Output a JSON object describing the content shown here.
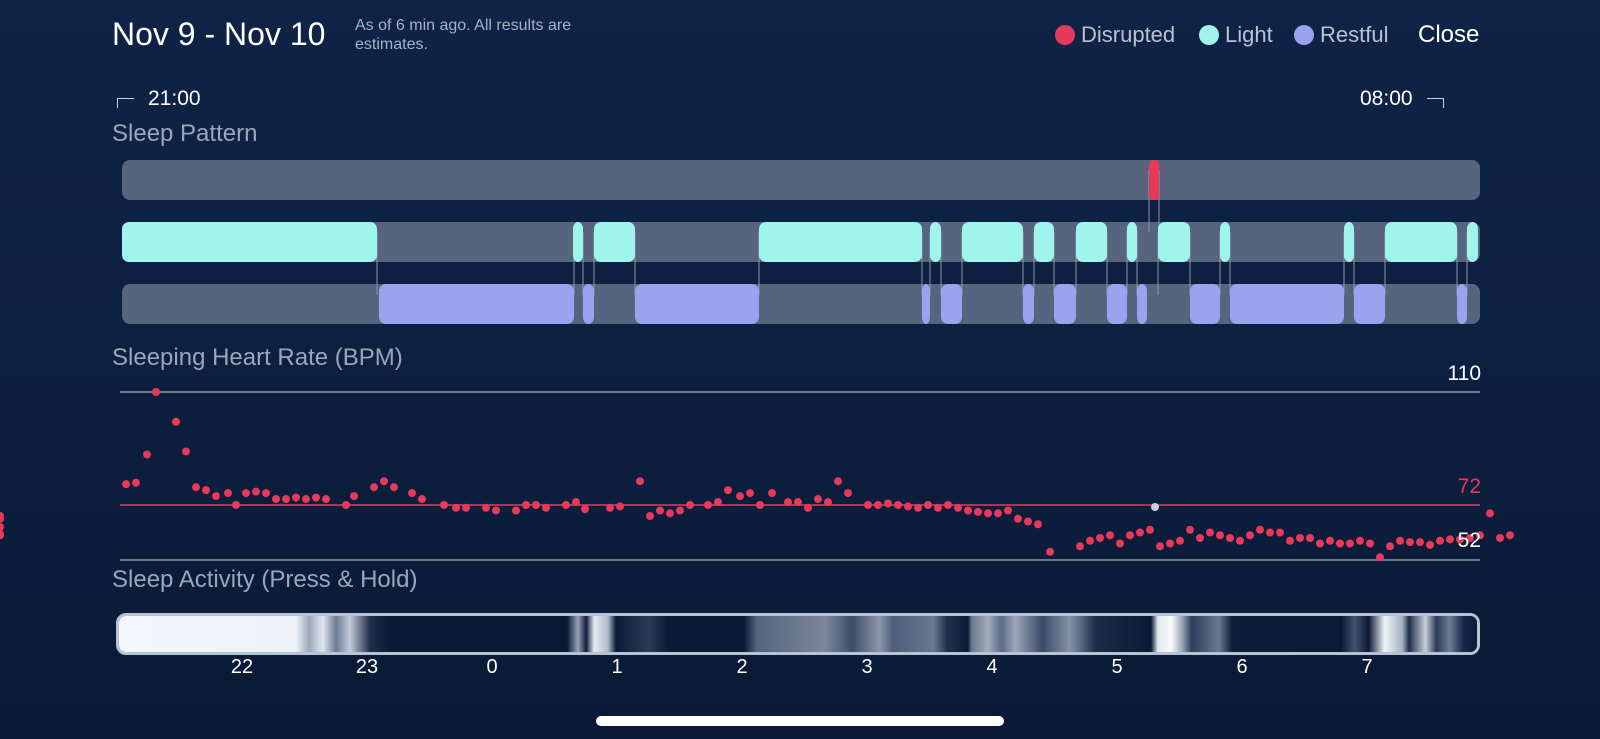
{
  "header": {
    "date_range": "Nov 9 - Nov 10",
    "note": "As of 6 min ago. All results are estimates.",
    "legend": [
      {
        "label": "Disrupted",
        "color": "#e8395a"
      },
      {
        "label": "Light",
        "color": "#9ff5ec"
      },
      {
        "label": "Restful",
        "color": "#9aa3f0"
      }
    ],
    "close_label": "Close"
  },
  "timeline": {
    "start": "21:00",
    "end": "08:00"
  },
  "sleep_pattern": {
    "title": "Sleep Pattern",
    "track_color": "#56657d",
    "disrupted_color": "#e8395a",
    "light_color": "#9ff5ec",
    "restful_color": "#9aa3f0"
  },
  "heart_rate": {
    "title": "Sleeping Heart Rate (BPM)",
    "max_label": "110",
    "avg_label": "72",
    "min_label": "52",
    "avg_color": "#e8395a",
    "point_color": "#e8395a"
  },
  "sleep_activity": {
    "title": "Sleep Activity (Press & Hold)"
  },
  "hour_ticks": [
    "22",
    "23",
    "0",
    "1",
    "2",
    "3",
    "4",
    "5",
    "6",
    "7"
  ]
}
